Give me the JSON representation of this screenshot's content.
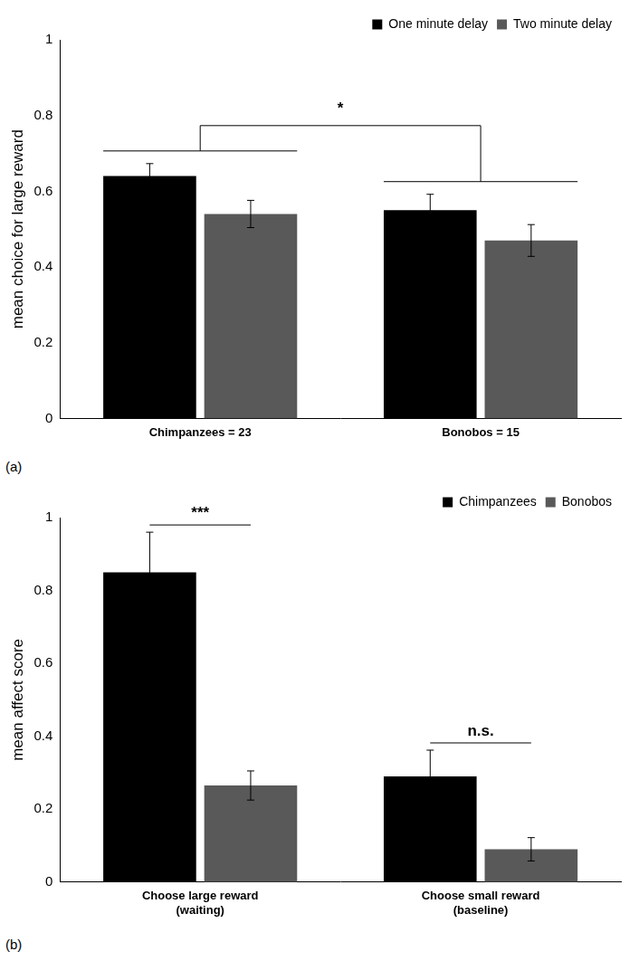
{
  "chart_data": [
    {
      "type": "bar",
      "panel": "(a)",
      "ylabel": "mean choice for large reward",
      "categories": [
        "Chimpanzees = 23",
        "Bonobos = 15"
      ],
      "series": [
        {
          "name": "One minute delay",
          "color": "#000000",
          "values": [
            0.64,
            0.55
          ],
          "errors": [
            0.033,
            0.042
          ]
        },
        {
          "name": "Two minute delay",
          "color": "#595959",
          "values": [
            0.54,
            0.47
          ],
          "errors": [
            0.036,
            0.042
          ]
        }
      ],
      "ylim": [
        0,
        1
      ],
      "yticks": [
        0,
        0.2,
        0.4,
        0.6,
        0.8,
        1
      ],
      "grid": false,
      "legend": "upper right",
      "annotations": [
        {
          "text": "*",
          "between": [
            "Chimpanzees = 23",
            "Bonobos = 15"
          ]
        }
      ]
    },
    {
      "type": "bar",
      "panel": "(b)",
      "ylabel": "mean affect score",
      "categories": [
        "Choose large reward (waiting)",
        "Choose small reward (baseline)"
      ],
      "series": [
        {
          "name": "Chimpanzees",
          "color": "#000000",
          "values": [
            0.85,
            0.29
          ],
          "errors": [
            0.11,
            0.072
          ]
        },
        {
          "name": "Bonobos",
          "color": "#595959",
          "values": [
            0.265,
            0.09
          ],
          "errors": [
            0.04,
            0.032
          ]
        }
      ],
      "ylim": [
        0,
        1
      ],
      "yticks": [
        0,
        0.2,
        0.4,
        0.6,
        0.8,
        1
      ],
      "grid": false,
      "legend": "upper right",
      "annotations": [
        {
          "text": "***",
          "category": "Choose large reward (waiting)"
        },
        {
          "text": "n.s.",
          "category": "Choose small reward (baseline)"
        }
      ]
    }
  ]
}
